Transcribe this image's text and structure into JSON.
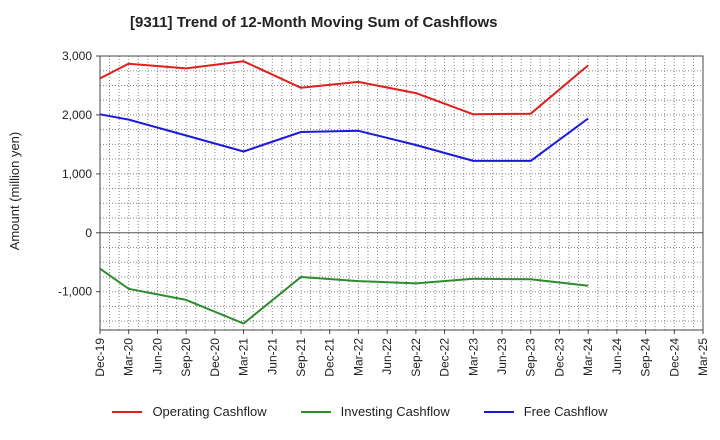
{
  "chart_data": {
    "type": "line",
    "title": "[9311]  Trend of 12-Month Moving Sum of Cashflows",
    "ylabel": "Amount (million yen)",
    "xlabel": "",
    "categories": [
      "Dec-19",
      "Mar-20",
      "Jun-20",
      "Sep-20",
      "Dec-20",
      "Mar-21",
      "Jun-21",
      "Sep-21",
      "Dec-21",
      "Mar-22",
      "Jun-22",
      "Sep-22",
      "Dec-22",
      "Mar-23",
      "Jun-23",
      "Sep-23",
      "Dec-23",
      "Mar-24",
      "Jun-24",
      "Sep-24",
      "Dec-24",
      "Mar-25"
    ],
    "ylim": [
      -1650,
      3000
    ],
    "yticks": [
      3000,
      2000,
      1000,
      0,
      -1000
    ],
    "ytick_labels": [
      "3,000",
      "2,000",
      "1,000",
      "0",
      "-1,000"
    ],
    "grid": true,
    "legend_position": "bottom",
    "series": [
      {
        "name": "Operating Cashflow",
        "color": "#e02020",
        "values": [
          2620,
          2870,
          null,
          2790,
          null,
          2910,
          null,
          2460,
          null,
          2560,
          null,
          2370,
          null,
          2010,
          null,
          2020,
          null,
          2840,
          null,
          null,
          null,
          null
        ]
      },
      {
        "name": "Investing Cashflow",
        "color": "#2e8b2e",
        "values": [
          -610,
          -950,
          null,
          -1140,
          null,
          -1540,
          null,
          -750,
          null,
          -820,
          null,
          -860,
          null,
          -780,
          null,
          -790,
          null,
          -900,
          null,
          null,
          null,
          null
        ]
      },
      {
        "name": "Free Cashflow",
        "color": "#1a1adf",
        "values": [
          2010,
          1920,
          null,
          1650,
          null,
          1380,
          null,
          1710,
          null,
          1730,
          null,
          1490,
          null,
          1220,
          null,
          1220,
          null,
          1940,
          null,
          null,
          null,
          null
        ]
      }
    ]
  }
}
